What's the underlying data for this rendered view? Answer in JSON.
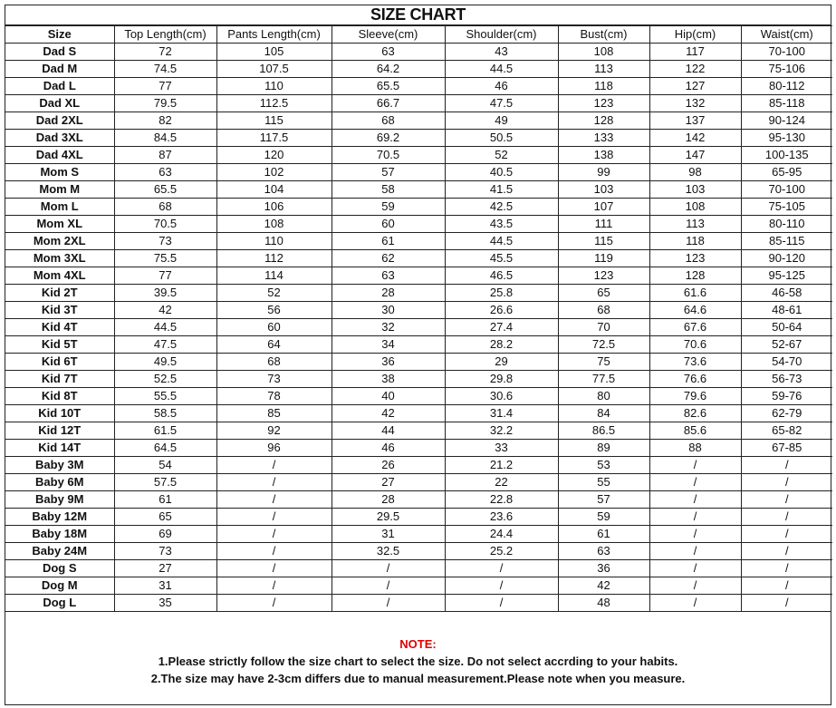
{
  "title": "SIZE CHART",
  "headers": [
    "Size",
    "Top Length(cm)",
    "Pants Length(cm)",
    "Sleeve(cm)",
    "Shoulder(cm)",
    "Bust(cm)",
    "Hip(cm)",
    "Waist(cm)"
  ],
  "rows": [
    [
      "Dad S",
      "72",
      "105",
      "63",
      "43",
      "108",
      "117",
      "70-100"
    ],
    [
      "Dad M",
      "74.5",
      "107.5",
      "64.2",
      "44.5",
      "113",
      "122",
      "75-106"
    ],
    [
      "Dad L",
      "77",
      "110",
      "65.5",
      "46",
      "118",
      "127",
      "80-112"
    ],
    [
      "Dad XL",
      "79.5",
      "112.5",
      "66.7",
      "47.5",
      "123",
      "132",
      "85-118"
    ],
    [
      "Dad 2XL",
      "82",
      "115",
      "68",
      "49",
      "128",
      "137",
      "90-124"
    ],
    [
      "Dad 3XL",
      "84.5",
      "117.5",
      "69.2",
      "50.5",
      "133",
      "142",
      "95-130"
    ],
    [
      "Dad 4XL",
      "87",
      "120",
      "70.5",
      "52",
      "138",
      "147",
      "100-135"
    ],
    [
      "Mom S",
      "63",
      "102",
      "57",
      "40.5",
      "99",
      "98",
      "65-95"
    ],
    [
      "Mom M",
      "65.5",
      "104",
      "58",
      "41.5",
      "103",
      "103",
      "70-100"
    ],
    [
      "Mom L",
      "68",
      "106",
      "59",
      "42.5",
      "107",
      "108",
      "75-105"
    ],
    [
      "Mom XL",
      "70.5",
      "108",
      "60",
      "43.5",
      "111",
      "113",
      "80-110"
    ],
    [
      "Mom 2XL",
      "73",
      "110",
      "61",
      "44.5",
      "115",
      "118",
      "85-115"
    ],
    [
      "Mom 3XL",
      "75.5",
      "112",
      "62",
      "45.5",
      "119",
      "123",
      "90-120"
    ],
    [
      "Mom 4XL",
      "77",
      "114",
      "63",
      "46.5",
      "123",
      "128",
      "95-125"
    ],
    [
      "Kid 2T",
      "39.5",
      "52",
      "28",
      "25.8",
      "65",
      "61.6",
      "46-58"
    ],
    [
      "Kid 3T",
      "42",
      "56",
      "30",
      "26.6",
      "68",
      "64.6",
      "48-61"
    ],
    [
      "Kid 4T",
      "44.5",
      "60",
      "32",
      "27.4",
      "70",
      "67.6",
      "50-64"
    ],
    [
      "Kid 5T",
      "47.5",
      "64",
      "34",
      "28.2",
      "72.5",
      "70.6",
      "52-67"
    ],
    [
      "Kid 6T",
      "49.5",
      "68",
      "36",
      "29",
      "75",
      "73.6",
      "54-70"
    ],
    [
      "Kid 7T",
      "52.5",
      "73",
      "38",
      "29.8",
      "77.5",
      "76.6",
      "56-73"
    ],
    [
      "Kid 8T",
      "55.5",
      "78",
      "40",
      "30.6",
      "80",
      "79.6",
      "59-76"
    ],
    [
      "Kid 10T",
      "58.5",
      "85",
      "42",
      "31.4",
      "84",
      "82.6",
      "62-79"
    ],
    [
      "Kid 12T",
      "61.5",
      "92",
      "44",
      "32.2",
      "86.5",
      "85.6",
      "65-82"
    ],
    [
      "Kid 14T",
      "64.5",
      "96",
      "46",
      "33",
      "89",
      "88",
      "67-85"
    ],
    [
      "Baby 3M",
      "54",
      "/",
      "26",
      "21.2",
      "53",
      "/",
      "/"
    ],
    [
      "Baby 6M",
      "57.5",
      "/",
      "27",
      "22",
      "55",
      "/",
      "/"
    ],
    [
      "Baby 9M",
      "61",
      "/",
      "28",
      "22.8",
      "57",
      "/",
      "/"
    ],
    [
      "Baby 12M",
      "65",
      "/",
      "29.5",
      "23.6",
      "59",
      "/",
      "/"
    ],
    [
      "Baby 18M",
      "69",
      "/",
      "31",
      "24.4",
      "61",
      "/",
      "/"
    ],
    [
      "Baby 24M",
      "73",
      "/",
      "32.5",
      "25.2",
      "63",
      "/",
      "/"
    ],
    [
      "Dog S",
      "27",
      "/",
      "/",
      "/",
      "36",
      "/",
      "/"
    ],
    [
      "Dog M",
      "31",
      "/",
      "/",
      "/",
      "42",
      "/",
      "/"
    ],
    [
      "Dog L",
      "35",
      "/",
      "/",
      "/",
      "48",
      "/",
      "/"
    ]
  ],
  "note": {
    "title": "NOTE:",
    "line1": "1.Please strictly follow the size chart to select the size. Do not select accrding to your habits.",
    "line2": "2.The size may have 2-3cm differs  due to manual measurement.Please note when you measure.",
    "title_color": "#e00000"
  }
}
